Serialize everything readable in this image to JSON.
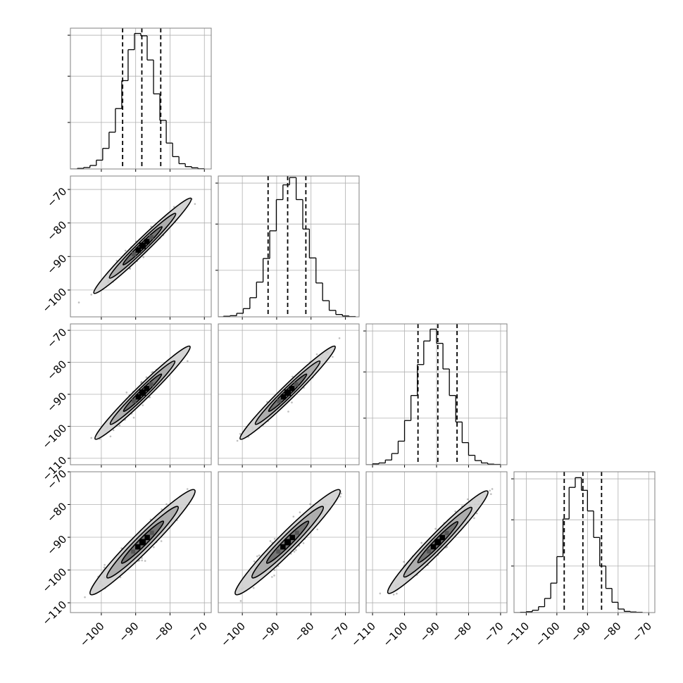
{
  "chart_data": {
    "type": "corner",
    "n_params": 4,
    "hist_bins": 20,
    "colors": {
      "line": "#000000",
      "grid": "#b0b0b0",
      "axes": "#808080",
      "scatter": "#444444"
    },
    "grid": true,
    "diagonal": [
      {
        "param": 0,
        "xlim": [
          -109,
          -68
        ],
        "bin_range": [
          -107.0,
          -70.0
        ],
        "counts": [
          2,
          5,
          12,
          30,
          70,
          125,
          205,
          300,
          405,
          460,
          452,
          370,
          255,
          165,
          88,
          42,
          18,
          8,
          4,
          1
        ],
        "ylim": [
          0,
          478
        ],
        "quantiles": [
          -93.8,
          -88.2,
          -82.7
        ]
      },
      {
        "param": 1,
        "xlim": [
          -107,
          -66
        ],
        "bin_range": [
          -105.5,
          -67.0
        ],
        "counts": [
          2,
          4,
          12,
          28,
          65,
          118,
          198,
          292,
          398,
          448,
          473,
          398,
          298,
          200,
          115,
          55,
          22,
          8,
          3,
          1
        ],
        "ylim": [
          0,
          478
        ],
        "quantiles": [
          -92.5,
          -86.8,
          -81.5
        ]
      },
      {
        "param": 2,
        "xlim": [
          -112,
          -68
        ],
        "bin_range": [
          -110.0,
          -70.0
        ],
        "counts": [
          3,
          6,
          16,
          38,
          80,
          150,
          235,
          340,
          420,
          460,
          412,
          325,
          235,
          145,
          75,
          32,
          14,
          6,
          2,
          1
        ],
        "ylim": [
          0,
          478
        ],
        "quantiles": [
          -95.8,
          -89.6,
          -83.6
        ]
      },
      {
        "param": 3,
        "xlim": [
          -114,
          -68
        ],
        "bin_range": [
          -112.0,
          -72.0
        ],
        "counts": [
          1,
          3,
          8,
          20,
          48,
          100,
          190,
          318,
          425,
          458,
          415,
          345,
          255,
          158,
          82,
          35,
          12,
          4,
          2,
          1
        ],
        "ylim": [
          0,
          478
        ],
        "quantiles": [
          -97.6,
          -91.5,
          -85.4
        ]
      }
    ],
    "pairs": [
      {
        "row": 1,
        "col": 0,
        "xlim": [
          -109,
          -68
        ],
        "ylim": [
          -108,
          -66
        ],
        "center": [
          -88.0,
          -86.8
        ],
        "slope": 1.0,
        "length": 40,
        "width": 1.8
      },
      {
        "row": 2,
        "col": 0,
        "xlim": [
          -109,
          -68
        ],
        "ylim": [
          -112,
          -68
        ],
        "center": [
          -88.0,
          -89.5
        ],
        "slope": 1.05,
        "length": 40,
        "width": 1.9
      },
      {
        "row": 2,
        "col": 1,
        "xlim": [
          -107,
          -66
        ],
        "ylim": [
          -112,
          -68
        ],
        "center": [
          -86.8,
          -89.5
        ],
        "slope": 1.05,
        "length": 40,
        "width": 1.9
      },
      {
        "row": 3,
        "col": 0,
        "xlim": [
          -109,
          -68
        ],
        "ylim": [
          -113,
          -70
        ],
        "center": [
          -88.0,
          -91.5
        ],
        "slope": 1.05,
        "length": 44,
        "width": 2.6
      },
      {
        "row": 3,
        "col": 1,
        "xlim": [
          -107,
          -66
        ],
        "ylim": [
          -113,
          -70
        ],
        "center": [
          -86.8,
          -91.5
        ],
        "slope": 1.05,
        "length": 44,
        "width": 2.6
      },
      {
        "row": 3,
        "col": 2,
        "xlim": [
          -112,
          -68
        ],
        "ylim": [
          -113,
          -70
        ],
        "center": [
          -89.6,
          -91.5
        ],
        "slope": 1.0,
        "length": 44,
        "width": 2.4
      }
    ],
    "x_tick_labels": [
      {
        "col": 0,
        "ticks": [
          -100,
          -90,
          -80,
          -70
        ],
        "labels": [
          "−100",
          "−90",
          "−80",
          "−70"
        ]
      },
      {
        "col": 1,
        "ticks": [
          -100,
          -90,
          -80,
          -70
        ],
        "labels": [
          "−100",
          "−90",
          "−80",
          "−70"
        ]
      },
      {
        "col": 2,
        "ticks": [
          -110,
          -100,
          -90,
          -80,
          -70
        ],
        "labels": [
          "−110",
          "−100",
          "−90",
          "−80",
          "−70"
        ]
      },
      {
        "col": 3,
        "ticks": [
          -110,
          -100,
          -90,
          -80,
          -70
        ],
        "labels": [
          "−110",
          "−100",
          "−90",
          "−80",
          "−70"
        ]
      }
    ],
    "y_tick_labels": [
      {
        "row": 1,
        "ticks": [
          -70,
          -80,
          -90,
          -100
        ],
        "labels": [
          "−70",
          "−80",
          "−90",
          "−100"
        ]
      },
      {
        "row": 2,
        "ticks": [
          -70,
          -80,
          -90,
          -100,
          -110
        ],
        "labels": [
          "−70",
          "−80",
          "−90",
          "−100",
          "−110"
        ]
      },
      {
        "row": 3,
        "ticks": [
          -70,
          -80,
          -90,
          -100,
          -110
        ],
        "labels": [
          "−70",
          "−80",
          "−90",
          "−100",
          "−110"
        ]
      }
    ]
  }
}
